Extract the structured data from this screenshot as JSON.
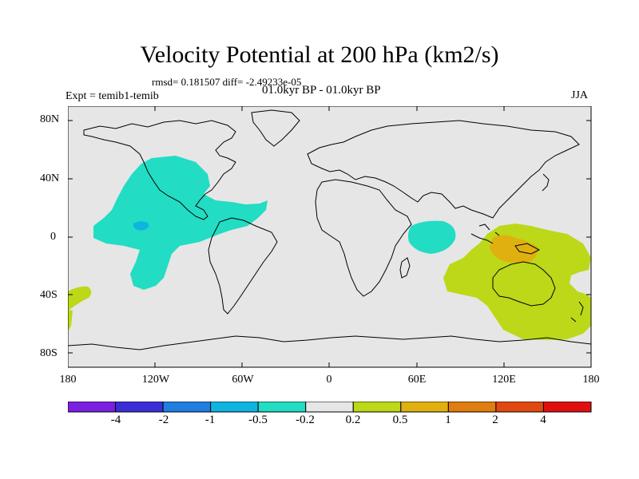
{
  "title": "Velocity Potential at 200 hPa (km2/s)",
  "stats": "rmsd= 0.181507 diff= -2.49233e-05",
  "experiment": "Expt = temib1-temib",
  "period": "01.0kyr BP - 01.0kyr BP",
  "season": "JJA",
  "lat_ticks": [
    "80N",
    "40N",
    "0",
    "40S",
    "80S"
  ],
  "lon_ticks": [
    "180",
    "120W",
    "60W",
    "0",
    "60E",
    "120E",
    "180"
  ],
  "colorbar": {
    "labels": [
      "-4",
      "-2",
      "-1",
      "-0.5",
      "-0.2",
      "0.2",
      "0.5",
      "1",
      "2",
      "4"
    ],
    "colors": [
      "#7b1fe0",
      "#3a2fd6",
      "#1f7ee0",
      "#10b4e0",
      "#22dcc4",
      "#e6e6e6",
      "#bcd818",
      "#e0b010",
      "#e07c10",
      "#e04a10",
      "#e01010"
    ]
  },
  "regions": [
    {
      "name": "north-pacific-atlantic-negative",
      "level": "-0.5 to -0.2",
      "color": "#22dcc4"
    },
    {
      "name": "central-pacific-minimum",
      "level": "-1 to -0.5",
      "color": "#10b4e0"
    },
    {
      "name": "western-indian-ocean-negative",
      "level": "-0.5 to -0.2",
      "color": "#22dcc4"
    },
    {
      "name": "maritime-continent-australia-positive",
      "level": "0.2 to 0.5",
      "color": "#bcd818"
    },
    {
      "name": "new-guinea-maximum",
      "level": "0.5 to 1",
      "color": "#e0b010"
    },
    {
      "name": "south-pacific-positive",
      "level": "0.2 to 0.5",
      "color": "#bcd818"
    }
  ]
}
